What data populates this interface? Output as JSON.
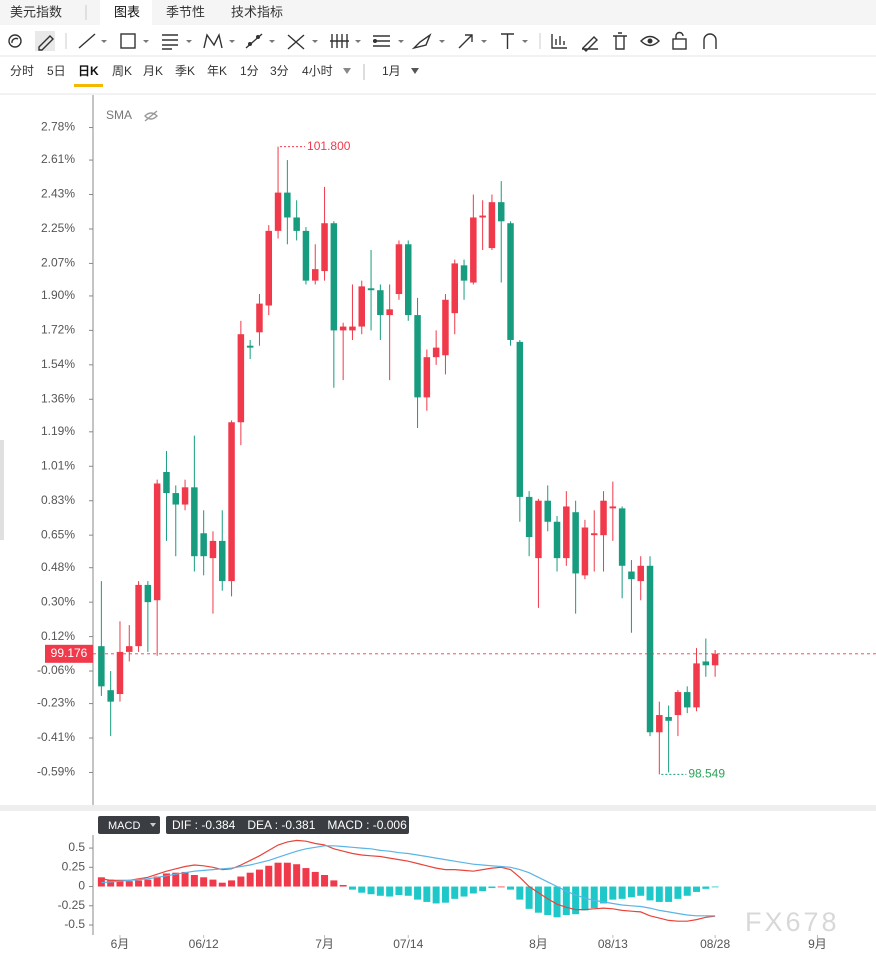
{
  "header": {
    "title": "美元指数",
    "tabs": [
      "图表",
      "季节性",
      "技术指标"
    ],
    "active_tab_index": 0
  },
  "periods": [
    "分时",
    "5日",
    "日K",
    "周K",
    "月K",
    "季K",
    "年K",
    "1分",
    "3分",
    "4小时",
    "1月"
  ],
  "active_period_index": 2,
  "indicator": "SMA",
  "watermark": "FX678",
  "chart_data": [
    {
      "type": "candlestick",
      "open": [
        0.07,
        -0.16,
        -0.18,
        0.04,
        0.07,
        0.39,
        0.31,
        0.98,
        0.87,
        0.81,
        0.9,
        0.66,
        0.53,
        0.62,
        0.41,
        1.24,
        1.64,
        1.71,
        1.85,
        2.24,
        2.44,
        2.31,
        2.24,
        1.98,
        2.03,
        2.28,
        1.72,
        1.72,
        1.74,
        1.94,
        1.93,
        1.8,
        1.91,
        2.17,
        1.8,
        1.37,
        1.58,
        1.59,
        1.81,
        2.06,
        1.97,
        2.31,
        2.15,
        2.39,
        2.28,
        1.66,
        0.85,
        0.53,
        0.83,
        0.72,
        0.53,
        0.77,
        0.44,
        0.65,
        0.65,
        0.79,
        0.79,
        0.46,
        0.41,
        0.49,
        -0.38,
        -0.3,
        -0.29,
        -0.17,
        -0.25,
        -0.01,
        -0.03
      ],
      "high": [
        0.41,
        -0.06,
        0.2,
        0.18,
        0.41,
        0.41,
        0.94,
        1.09,
        0.91,
        0.94,
        1.17,
        0.78,
        0.67,
        0.78,
        1.25,
        1.77,
        1.67,
        1.91,
        2.27,
        2.68,
        2.61,
        2.4,
        2.26,
        2.17,
        2.47,
        2.29,
        1.76,
        1.96,
        1.98,
        2.14,
        1.96,
        1.96,
        2.19,
        2.19,
        1.89,
        1.62,
        1.72,
        1.91,
        2.09,
        2.09,
        2.43,
        2.4,
        2.43,
        2.5,
        2.29,
        1.67,
        0.88,
        0.84,
        0.91,
        0.75,
        0.88,
        0.83,
        0.73,
        0.78,
        0.88,
        0.93,
        0.8,
        0.52,
        0.54,
        0.54,
        -0.22,
        -0.24,
        -0.16,
        -0.14,
        0.06,
        0.11,
        0.05
      ],
      "low": [
        -0.19,
        -0.4,
        -0.22,
        -0.01,
        0.04,
        0.04,
        0.02,
        0.62,
        0.54,
        0.78,
        0.46,
        0.44,
        0.24,
        0.36,
        0.33,
        1.12,
        1.57,
        1.64,
        1.8,
        2.2,
        2.17,
        2.19,
        1.96,
        1.96,
        1.98,
        1.42,
        1.46,
        1.67,
        1.7,
        1.72,
        1.67,
        1.46,
        1.88,
        1.77,
        1.21,
        1.3,
        1.54,
        1.49,
        1.7,
        1.88,
        1.96,
        2.14,
        2.14,
        1.97,
        1.64,
        0.72,
        0.54,
        0.27,
        0.67,
        0.46,
        0.49,
        0.24,
        0.42,
        0.46,
        0.46,
        0.62,
        0.32,
        0.14,
        0.31,
        -0.4,
        -0.6,
        -0.59,
        -0.4,
        -0.28,
        -0.27,
        -0.09,
        -0.09
      ],
      "close": [
        -0.14,
        -0.22,
        0.04,
        0.07,
        0.39,
        0.3,
        0.92,
        0.87,
        0.81,
        0.9,
        0.54,
        0.54,
        0.62,
        0.41,
        1.24,
        1.7,
        1.63,
        1.86,
        2.24,
        2.44,
        2.31,
        2.24,
        1.98,
        2.04,
        2.28,
        1.72,
        1.74,
        1.74,
        1.95,
        1.93,
        1.8,
        1.83,
        2.17,
        1.8,
        1.37,
        1.58,
        1.63,
        1.88,
        2.07,
        1.98,
        2.31,
        2.32,
        2.39,
        2.29,
        1.67,
        0.85,
        0.64,
        0.83,
        0.72,
        0.53,
        0.8,
        0.45,
        0.69,
        0.66,
        0.83,
        0.8,
        0.49,
        0.42,
        0.49,
        -0.38,
        -0.29,
        -0.32,
        -0.17,
        -0.25,
        -0.02,
        -0.03,
        0.03
      ],
      "up_color": "#f0394a",
      "down_color": "#179c7f",
      "ylim": [
        -0.76,
        2.95
      ],
      "yticks": [
        {
          "value": 2.78,
          "label": "2.78%"
        },
        {
          "value": 2.61,
          "label": "2.61%"
        },
        {
          "value": 2.43,
          "label": "2.43%"
        },
        {
          "value": 2.25,
          "label": "2.25%"
        },
        {
          "value": 2.07,
          "label": "2.07%"
        },
        {
          "value": 1.9,
          "label": "1.90%"
        },
        {
          "value": 1.72,
          "label": "1.72%"
        },
        {
          "value": 1.54,
          "label": "1.54%"
        },
        {
          "value": 1.36,
          "label": "1.36%"
        },
        {
          "value": 1.19,
          "label": "1.19%"
        },
        {
          "value": 1.01,
          "label": "1.01%"
        },
        {
          "value": 0.83,
          "label": "0.83%"
        },
        {
          "value": 0.65,
          "label": "0.65%"
        },
        {
          "value": 0.48,
          "label": "0.48%"
        },
        {
          "value": 0.3,
          "label": "0.30%"
        },
        {
          "value": 0.12,
          "label": "0.12%"
        },
        {
          "value": -0.06,
          "label": "-0.06%"
        },
        {
          "value": -0.23,
          "label": "-0.23%"
        },
        {
          "value": -0.41,
          "label": "-0.41%"
        },
        {
          "value": -0.59,
          "label": "-0.59%"
        }
      ],
      "xlim": [
        -0.9,
        83.3
      ],
      "xticks": [
        {
          "value": 2,
          "label": "6月"
        },
        {
          "value": 11,
          "label": "06/12"
        },
        {
          "value": 24,
          "label": "7月"
        },
        {
          "value": 33,
          "label": "07/14"
        },
        {
          "value": 47,
          "label": "8月"
        },
        {
          "value": 55,
          "label": "08/13"
        },
        {
          "value": 66,
          "label": "08/28"
        },
        {
          "value": 77,
          "label": "9月"
        }
      ],
      "high_label": "101.800",
      "low_label": "98.549",
      "last_label": "99.176",
      "grid": false
    },
    {
      "type": "macd",
      "title": "MACD",
      "series": [
        {
          "name": "DIF : -0.384",
          "kind": "line",
          "color": "#e8443a",
          "values": [
            0.1,
            0.08,
            0.08,
            0.08,
            0.1,
            0.12,
            0.16,
            0.2,
            0.23,
            0.26,
            0.28,
            0.27,
            0.25,
            0.22,
            0.23,
            0.28,
            0.34,
            0.4,
            0.47,
            0.54,
            0.58,
            0.6,
            0.59,
            0.56,
            0.54,
            0.49,
            0.46,
            0.43,
            0.41,
            0.4,
            0.39,
            0.37,
            0.35,
            0.33,
            0.3,
            0.27,
            0.24,
            0.22,
            0.22,
            0.21,
            0.2,
            0.22,
            0.24,
            0.25,
            0.22,
            0.12,
            0.0,
            -0.08,
            -0.16,
            -0.23,
            -0.27,
            -0.3,
            -0.3,
            -0.29,
            -0.28,
            -0.29,
            -0.31,
            -0.32,
            -0.33,
            -0.38,
            -0.41,
            -0.44,
            -0.45,
            -0.45,
            -0.43,
            -0.4,
            -0.384
          ]
        },
        {
          "name": "DEA : -0.381",
          "kind": "line",
          "color": "#5ab4e6",
          "values": [
            0.05,
            0.06,
            0.07,
            0.08,
            0.09,
            0.1,
            0.12,
            0.14,
            0.16,
            0.18,
            0.2,
            0.21,
            0.22,
            0.23,
            0.24,
            0.26,
            0.28,
            0.31,
            0.34,
            0.38,
            0.42,
            0.46,
            0.49,
            0.51,
            0.53,
            0.53,
            0.52,
            0.51,
            0.5,
            0.49,
            0.47,
            0.46,
            0.44,
            0.43,
            0.41,
            0.39,
            0.37,
            0.35,
            0.33,
            0.31,
            0.29,
            0.28,
            0.27,
            0.26,
            0.25,
            0.22,
            0.18,
            0.12,
            0.06,
            0.0,
            -0.06,
            -0.11,
            -0.15,
            -0.18,
            -0.2,
            -0.22,
            -0.24,
            -0.25,
            -0.26,
            -0.28,
            -0.31,
            -0.33,
            -0.35,
            -0.37,
            -0.38,
            -0.38,
            -0.381
          ]
        },
        {
          "name": "MACD : -0.006",
          "kind": "bar",
          "values": [
            0.12,
            0.09,
            0.08,
            0.07,
            0.08,
            0.09,
            0.13,
            0.17,
            0.18,
            0.19,
            0.15,
            0.12,
            0.09,
            0.05,
            0.08,
            0.13,
            0.18,
            0.22,
            0.27,
            0.31,
            0.31,
            0.29,
            0.24,
            0.19,
            0.15,
            0.08,
            0.02,
            -0.04,
            -0.08,
            -0.1,
            -0.12,
            -0.13,
            -0.11,
            -0.12,
            -0.17,
            -0.2,
            -0.22,
            -0.21,
            -0.16,
            -0.13,
            -0.09,
            -0.06,
            -0.02,
            0.0,
            -0.04,
            -0.17,
            -0.29,
            -0.34,
            -0.37,
            -0.4,
            -0.37,
            -0.36,
            -0.31,
            -0.28,
            -0.22,
            -0.17,
            -0.16,
            -0.14,
            -0.12,
            -0.18,
            -0.2,
            -0.2,
            -0.16,
            -0.12,
            -0.07,
            -0.03,
            -0.006
          ]
        }
      ],
      "up_color": "#f0394a",
      "down_color": "#1ec8c8",
      "ylim": [
        -0.63,
        0.67
      ],
      "yticks": [
        0.5,
        0.25,
        0,
        -0.25,
        -0.5
      ]
    }
  ]
}
